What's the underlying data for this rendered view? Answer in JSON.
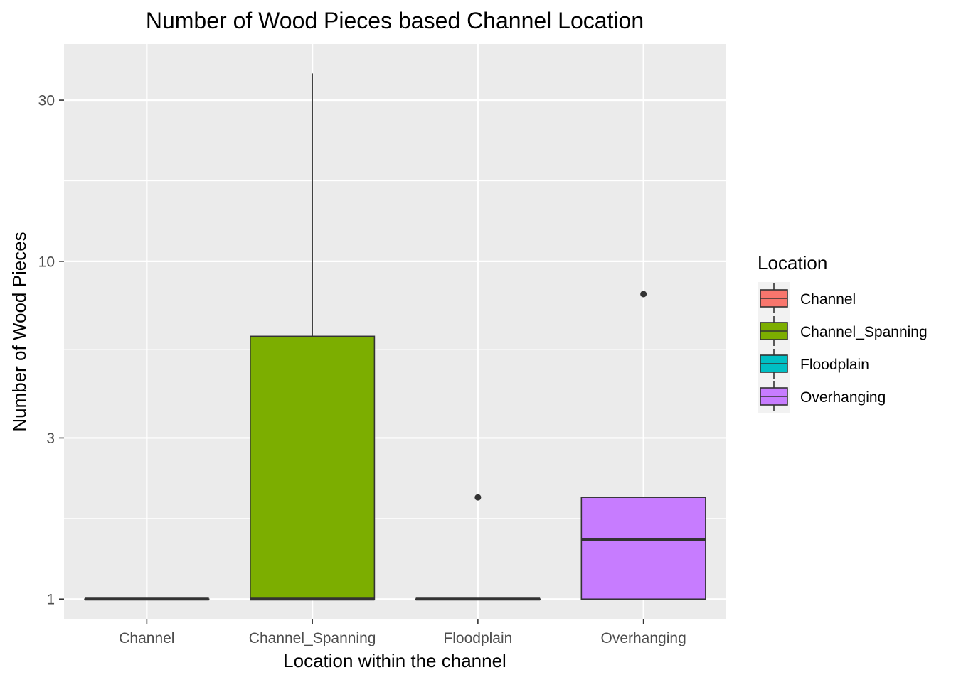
{
  "chart_data": {
    "type": "boxplot",
    "title": "Number of Wood Pieces based Channel Location",
    "xlabel": "Location within the channel",
    "ylabel": "Number of Wood Pieces",
    "y_scale": "log10",
    "ylim": [
      0.87,
      44
    ],
    "y_ticks": [
      1,
      3,
      10,
      30
    ],
    "y_tick_labels": [
      "1",
      "3",
      "10",
      "30"
    ],
    "categories": [
      "Channel",
      "Channel_Spanning",
      "Floodplain",
      "Overhanging"
    ],
    "boxes": [
      {
        "category": "Channel",
        "min": 1,
        "q1": 1,
        "median": 1,
        "q3": 1,
        "max": 1,
        "outliers": []
      },
      {
        "category": "Channel_Spanning",
        "min": 1,
        "q1": 1,
        "median": 1,
        "q3": 6,
        "max": 36,
        "outliers": []
      },
      {
        "category": "Floodplain",
        "min": 1,
        "q1": 1,
        "median": 1,
        "q3": 1,
        "max": 1,
        "outliers": [
          2
        ]
      },
      {
        "category": "Overhanging",
        "min": 1,
        "q1": 1,
        "median": 1.5,
        "q3": 2,
        "max": 2,
        "outliers": [
          8
        ]
      }
    ],
    "colors": {
      "Channel": "#F8766D",
      "Channel_Spanning": "#7CAE00",
      "Floodplain": "#00BFC4",
      "Overhanging": "#C77CFF"
    },
    "panel_background": "#EBEBEB",
    "grid": true,
    "legend": {
      "title": "Location",
      "position": "right",
      "entries": [
        "Channel",
        "Channel_Spanning",
        "Floodplain",
        "Overhanging"
      ]
    }
  }
}
